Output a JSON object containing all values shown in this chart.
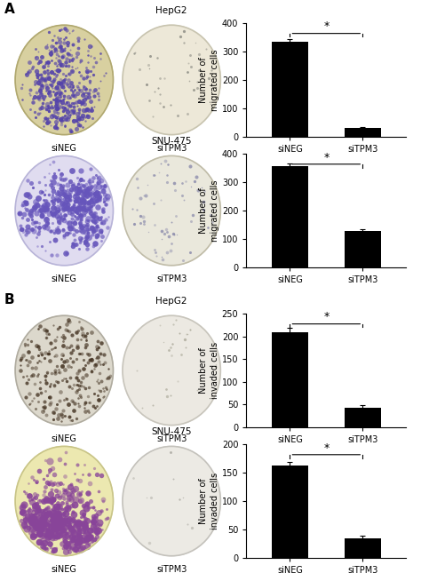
{
  "sections": [
    {
      "label": "A",
      "rows": [
        {
          "title": "HepG2",
          "ylabel": "Number of\nmigrated cells",
          "left_ellipse": {
            "bg": "#d8d0a0",
            "edge": "#b0a870",
            "spot_color": "#5544aa",
            "n_spots": 350,
            "spot_size_range": [
              1.5,
              4.0
            ],
            "seed": 10,
            "cluster": true
          },
          "right_ellipse": {
            "bg": "#ede8d8",
            "edge": "#c8c4b0",
            "spot_color": "#888880",
            "n_spots": 40,
            "spot_size_range": [
              1.0,
              2.5
            ],
            "seed": 20,
            "cluster": false
          },
          "chart": {
            "values": [
              335,
              30
            ],
            "errors": [
              10,
              4
            ],
            "ylim": [
              0,
              400
            ],
            "yticks": [
              0,
              100,
              200,
              300,
              400
            ]
          }
        },
        {
          "title": "SNU-475",
          "ylabel": "Number of\nmigrated cells",
          "left_ellipse": {
            "bg": "#e0dcf0",
            "edge": "#b8b4d8",
            "spot_color": "#6655bb",
            "n_spots": 400,
            "spot_size_range": [
              2.0,
              5.0
            ],
            "seed": 30,
            "cluster": true
          },
          "right_ellipse": {
            "bg": "#eae8dc",
            "edge": "#c0bca8",
            "spot_color": "#8888aa",
            "n_spots": 70,
            "spot_size_range": [
              1.0,
              3.0
            ],
            "seed": 40,
            "cluster": false
          },
          "chart": {
            "values": [
              358,
              128
            ],
            "errors": [
              8,
              6
            ],
            "ylim": [
              0,
              400
            ],
            "yticks": [
              0,
              100,
              200,
              300,
              400
            ]
          }
        }
      ]
    },
    {
      "label": "B",
      "rows": [
        {
          "title": "HepG2",
          "ylabel": "Number of\ninvaded cells",
          "left_ellipse": {
            "bg": "#dcd8cc",
            "edge": "#b0aca0",
            "spot_color": "#443322",
            "n_spots": 280,
            "spot_size_range": [
              1.5,
              3.5
            ],
            "seed": 50,
            "cluster": false
          },
          "right_ellipse": {
            "bg": "#ece9e2",
            "edge": "#c8c5bc",
            "spot_color": "#aaa898",
            "n_spots": 25,
            "spot_size_range": [
              1.0,
              2.5
            ],
            "seed": 60,
            "cluster": false
          },
          "chart": {
            "values": [
              210,
              43
            ],
            "errors": [
              8,
              5
            ],
            "ylim": [
              0,
              250
            ],
            "yticks": [
              0,
              50,
              100,
              150,
              200,
              250
            ]
          }
        },
        {
          "title": "SNU-475",
          "ylabel": "Number of\ninvaded cells",
          "left_ellipse": {
            "bg": "#ece8b0",
            "edge": "#c8c488",
            "spot_color": "#884499",
            "n_spots": 450,
            "spot_size_range": [
              2.5,
              6.0
            ],
            "seed": 70,
            "cluster": true
          },
          "right_ellipse": {
            "bg": "#eceae4",
            "edge": "#c4c2bc",
            "spot_color": "#aaa8a0",
            "n_spots": 12,
            "spot_size_range": [
              1.0,
              2.5
            ],
            "seed": 80,
            "cluster": false
          },
          "chart": {
            "values": [
              163,
              35
            ],
            "errors": [
              6,
              4
            ],
            "ylim": [
              0,
              200
            ],
            "yticks": [
              0,
              50,
              100,
              150,
              200
            ]
          }
        }
      ]
    }
  ],
  "bar_color": "#000000",
  "bar_width": 0.5,
  "categories": [
    "siNEG",
    "siTPM3"
  ],
  "bg_color": "#ffffff",
  "sig_text": "*"
}
